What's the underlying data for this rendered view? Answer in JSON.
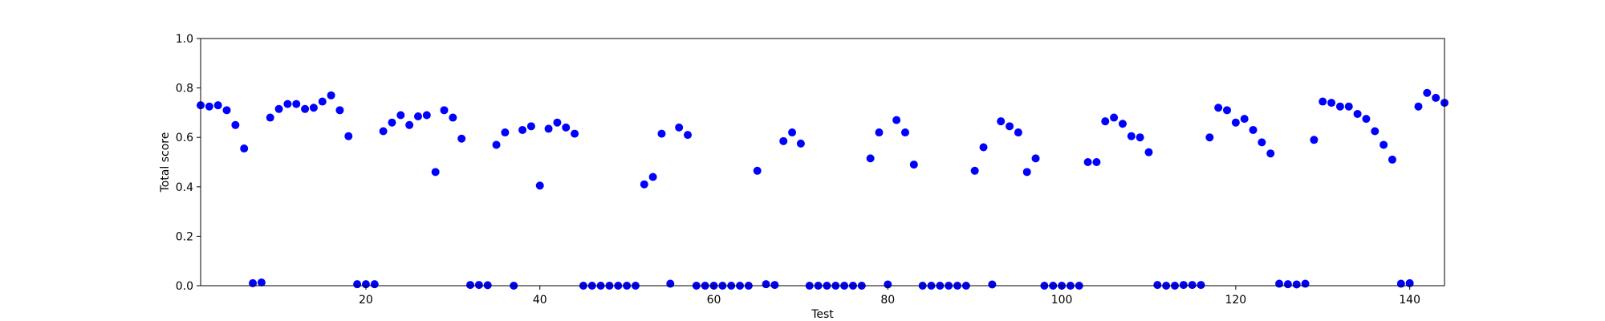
{
  "chart_data": {
    "type": "scatter",
    "xlabel": "Test",
    "ylabel": "Total score",
    "xlim": [
      1,
      144
    ],
    "ylim": [
      0.0,
      1.0
    ],
    "xticks": [
      20,
      40,
      60,
      80,
      100,
      120,
      140
    ],
    "xtick_labels": [
      "20",
      "40",
      "60",
      "80",
      "100",
      "120",
      "140"
    ],
    "yticks": [
      0.0,
      0.2,
      0.4,
      0.6,
      0.8,
      1.0
    ],
    "ytick_labels": [
      "0.0",
      "0.2",
      "0.4",
      "0.6",
      "0.8",
      "1.0"
    ],
    "grid": false,
    "marker_color": "#0000ff",
    "series": [
      {
        "x": [
          1,
          2,
          3,
          4,
          5,
          6,
          7,
          8,
          9,
          10,
          11,
          12,
          13,
          14,
          15,
          16,
          17,
          18,
          19,
          20,
          21,
          22,
          23,
          24,
          25,
          26,
          27,
          28,
          29,
          30,
          31,
          32,
          33,
          34,
          35,
          36,
          37,
          38,
          39,
          40,
          41,
          42,
          43,
          44,
          45,
          46,
          47,
          48,
          49,
          50,
          51,
          52,
          53,
          54,
          55,
          56,
          57,
          58,
          59,
          60,
          61,
          62,
          63,
          64,
          65,
          66,
          67,
          68,
          69,
          70,
          71,
          72,
          73,
          74,
          75,
          76,
          77,
          78,
          79,
          80,
          81,
          82,
          83,
          84,
          85,
          86,
          87,
          88,
          89,
          90,
          91,
          92,
          93,
          94,
          95,
          96,
          97,
          98,
          99,
          100,
          101,
          102,
          103,
          104,
          105,
          106,
          107,
          108,
          109,
          110,
          111,
          112,
          113,
          114,
          115,
          116,
          117,
          118,
          119,
          120,
          121,
          122,
          123,
          124,
          125,
          126,
          127,
          128,
          129,
          130,
          131,
          132,
          133,
          134,
          135,
          136,
          137,
          138,
          139,
          140,
          141,
          142,
          143,
          144
        ],
        "y": [
          0.73,
          0.725,
          0.73,
          0.71,
          0.65,
          0.555,
          0.01,
          0.013,
          0.68,
          0.715,
          0.735,
          0.735,
          0.715,
          0.72,
          0.745,
          0.77,
          0.71,
          0.605,
          0.006,
          0.006,
          0.006,
          0.625,
          0.66,
          0.69,
          0.65,
          0.685,
          0.69,
          0.46,
          0.71,
          0.68,
          0.595,
          0.003,
          0.003,
          0.002,
          0.57,
          0.62,
          0.0,
          0.63,
          0.645,
          0.405,
          0.635,
          0.66,
          0.64,
          0.615,
          0.0,
          0.0,
          0.0,
          0.0,
          0.0,
          0.0,
          0.0,
          0.41,
          0.44,
          0.615,
          0.008,
          0.64,
          0.61,
          0.0,
          0.0,
          0.0,
          0.0,
          0.0,
          0.0,
          0.0,
          0.465,
          0.006,
          0.003,
          0.585,
          0.62,
          0.575,
          0.0,
          0.0,
          0.0,
          0.0,
          0.0,
          0.0,
          0.0,
          0.515,
          0.62,
          0.005,
          0.67,
          0.62,
          0.49,
          0.0,
          0.0,
          0.0,
          0.0,
          0.0,
          0.0,
          0.465,
          0.56,
          0.005,
          0.665,
          0.645,
          0.62,
          0.46,
          0.515,
          0.0,
          0.0,
          0.0,
          0.0,
          0.0,
          0.5,
          0.5,
          0.665,
          0.68,
          0.655,
          0.605,
          0.6,
          0.54,
          0.003,
          0.0,
          0.0,
          0.003,
          0.003,
          0.003,
          0.6,
          0.72,
          0.71,
          0.66,
          0.675,
          0.63,
          0.58,
          0.535,
          0.008,
          0.006,
          0.005,
          0.008,
          0.59,
          0.745,
          0.74,
          0.725,
          0.725,
          0.695,
          0.675,
          0.625,
          0.57,
          0.51,
          0.008,
          0.01,
          0.725,
          0.78,
          0.76,
          0.74
        ]
      }
    ]
  }
}
